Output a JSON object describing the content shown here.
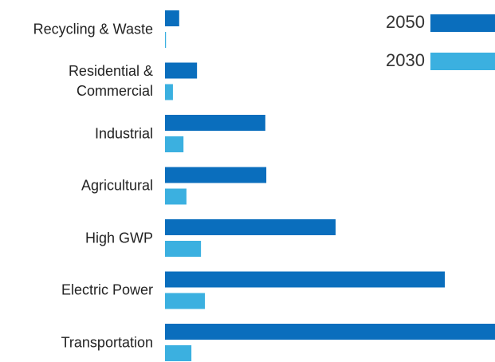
{
  "chart_data": {
    "type": "bar",
    "orientation": "horizontal",
    "categories": [
      "Recycling & Waste",
      "Residential & Commercial",
      "Industrial",
      "Agricultural",
      "High GWP",
      "Electric Power",
      "Transportation"
    ],
    "series": [
      {
        "name": "2050",
        "color": "#0a6ebd",
        "values": [
          4.3,
          9.7,
          30.4,
          30.7,
          51.7,
          84.8,
          100
        ]
      },
      {
        "name": "2030",
        "color": "#3bb0e0",
        "values": [
          0.3,
          2.4,
          5.6,
          6.5,
          10.9,
          12.1,
          8.0
        ]
      }
    ],
    "xlim": [
      0,
      100
    ],
    "legend": "top-right"
  }
}
